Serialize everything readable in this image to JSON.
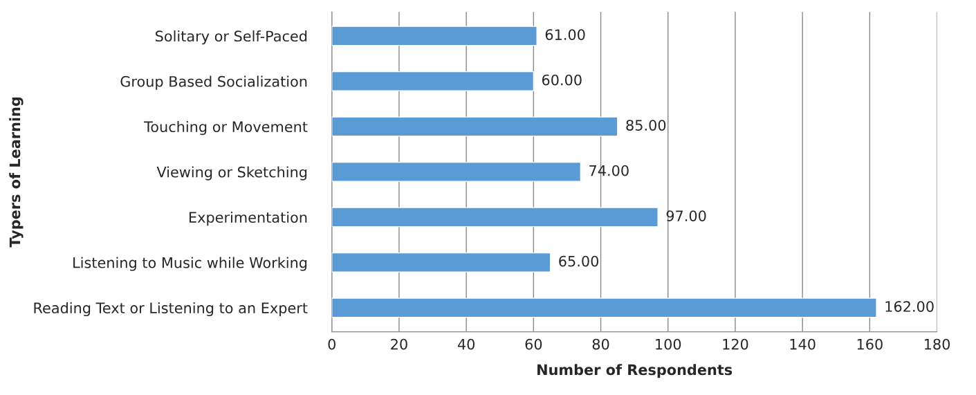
{
  "chart_data": {
    "type": "bar",
    "orientation": "horizontal",
    "xlabel": "Number of Respondents",
    "ylabel": "Typers of Learning",
    "categories": [
      "Solitary or Self-Paced",
      "Group Based Socialization",
      "Touching or Movement",
      "Viewing or Sketching",
      "Experimentation",
      "Listening to Music while Working",
      "Reading Text or Listening to an Expert"
    ],
    "values": [
      61,
      60,
      85,
      74,
      97,
      65,
      162
    ],
    "value_labels": [
      "61.00",
      "60.00",
      "85.00",
      "74.00",
      "97.00",
      "65.00",
      "162.00"
    ],
    "color": "#5b9bd5",
    "xlim": [
      0,
      180
    ],
    "xticks": [
      0,
      20,
      40,
      60,
      80,
      100,
      120,
      140,
      160,
      180
    ],
    "grid": "x",
    "legend": false
  }
}
